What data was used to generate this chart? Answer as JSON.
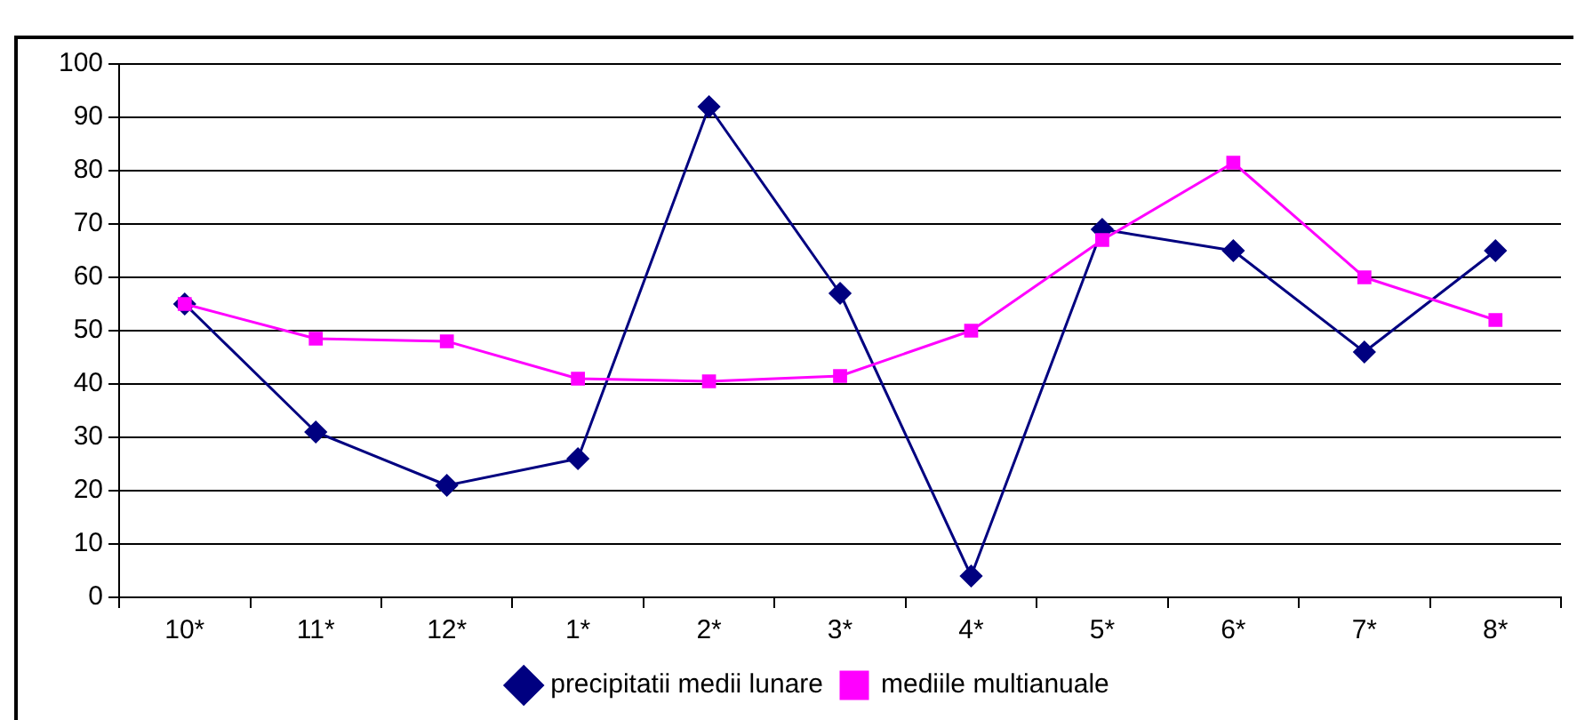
{
  "chart_data": {
    "type": "line",
    "categories": [
      "10*",
      "11*",
      "12*",
      "1*",
      "2*",
      "3*",
      "4*",
      "5*",
      "6*",
      "7*",
      "8*"
    ],
    "series": [
      {
        "name": "precipitatii medii lunare",
        "color": "#000080",
        "marker": "diamond",
        "values": [
          55,
          31,
          21,
          26,
          92,
          57,
          4,
          69,
          65,
          46,
          65
        ]
      },
      {
        "name": "mediile multianuale",
        "color": "#ff00ff",
        "marker": "square",
        "values": [
          55,
          48.5,
          48,
          41,
          40.5,
          41.5,
          50,
          67,
          81.5,
          60,
          52
        ]
      }
    ],
    "ylim": [
      0,
      100
    ],
    "yticks": [
      0,
      10,
      20,
      30,
      40,
      50,
      60,
      70,
      80,
      90,
      100
    ],
    "grid": "y",
    "legend": "bottom"
  }
}
